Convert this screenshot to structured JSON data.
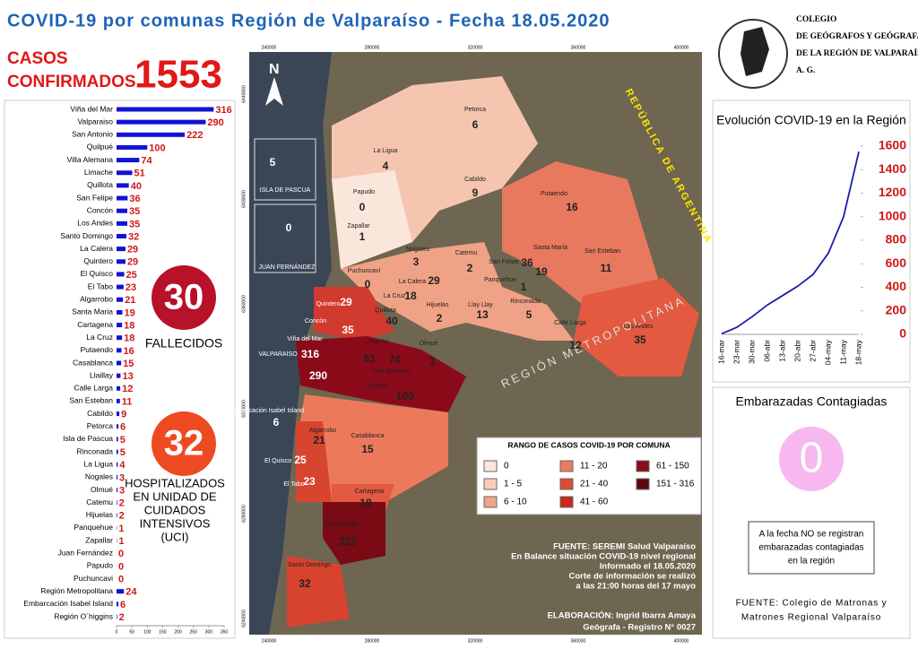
{
  "header": {
    "title": "COVID-19 por comunas Región de Valparaíso - Fecha 18.05.2020",
    "casos": "CASOS",
    "confirmados": "CONFIRMADOS",
    "total": "1553",
    "logo_lines": [
      "COLEGIO",
      "DE GEÓGRAFOS Y GEÓGRAFAS",
      "DE LA REGIÓN DE VALPARAÍSO",
      "A. G."
    ]
  },
  "stats": {
    "fallecidos_value": "30",
    "fallecidos": "FALLECIDOS",
    "uci_value": "32",
    "uci_lines": [
      "HOSPITALIZADOS",
      "EN UNIDAD DE",
      "CUIDADOS",
      "INTENSIVOS",
      "(UCI)"
    ]
  },
  "chart_data": [
    {
      "type": "hbar",
      "color": "#1212d4",
      "label_color": "#d01818",
      "categories": [
        "Viña del Mar",
        "Valparaiso",
        "San Antonio",
        "Quilpué",
        "Villa Alemana",
        "Limache",
        "Quillota",
        "San Felipe",
        "Concón",
        "Los Andes",
        "Santo Domingo",
        "La Calera",
        "Quintero",
        "El Quisco",
        "El Tabo",
        "Algarrobo",
        "Santa Maria",
        "Cartagena",
        "La Cruz",
        "Putaendo",
        "Casablanca",
        "Llaillay",
        "Calle Larga",
        "San Esteban",
        "Cabildo",
        "Petorca",
        "Isla de Pascua",
        "Rinconada",
        "La Ligua",
        "Nogales",
        "Olmué",
        "Catemu",
        "Hijuelas",
        "Panquehue",
        "Zapallar",
        "Juan Fernández",
        "Papudo",
        "Puchuncavi",
        "Región Metropolitana",
        "Embarcación Isabel Island",
        "Región O´higgins"
      ],
      "values": [
        316,
        290,
        222,
        100,
        74,
        51,
        40,
        36,
        35,
        35,
        32,
        29,
        29,
        25,
        23,
        21,
        19,
        18,
        18,
        16,
        15,
        13,
        12,
        11,
        9,
        6,
        5,
        5,
        4,
        3,
        3,
        2,
        2,
        1,
        1,
        0,
        0,
        0,
        24,
        6,
        2
      ],
      "xlim": [
        0,
        350
      ],
      "xticks": [
        0,
        50,
        100,
        150,
        200,
        250,
        300,
        350
      ]
    },
    {
      "type": "line",
      "title": "Evolución COVID-19 en la Región",
      "categories": [
        "16-mar",
        "23-mar",
        "30-mar",
        "06-abr",
        "13-abr",
        "20-abr",
        "27-abr",
        "04-may",
        "11-may",
        "18-may"
      ],
      "series": [
        {
          "name": "Casos",
          "color": "#1c1cb0",
          "values": [
            5,
            60,
            150,
            250,
            330,
            410,
            510,
            690,
            1000,
            1553
          ]
        }
      ],
      "ylim": [
        0,
        1600
      ],
      "yticks": [
        0,
        200,
        400,
        600,
        800,
        1000,
        1200,
        1400,
        1600
      ]
    }
  ],
  "map": {
    "communes": [
      "Petorca",
      "La Ligua",
      "Cabildo",
      "Putaendo",
      "Papudo",
      "Zapallar",
      "Nogales",
      "Catemu",
      "San Felipe",
      "Santa María",
      "San Esteban",
      "Puchuncaví",
      "La Calera",
      "La Cruz",
      "Panquehue",
      "Hijuelas",
      "Llay Llay",
      "Rinconada",
      "Quillota",
      "Quintero",
      "Concón",
      "Calle Larga",
      "Los Andes",
      "Viña del Mar",
      "Limache",
      "Villa Alemana",
      "Olmué",
      "VALPARAISO",
      "Quilpué",
      "Algarrobo",
      "Casablanca",
      "El Quisco",
      "El Tabo",
      "Cartagena",
      "San Antonio",
      "Santo Domingo",
      "Embarcación Isabel Island",
      "ISLA DE PASCUA",
      "JUAN FERNÁNDEZ"
    ],
    "north": "N",
    "metro": "REGIÓN METROPOLITANA",
    "argentina": "REPÚBLICA DE ARGENTINA",
    "xticks": [
      "240000",
      "280000",
      "320000",
      "360000",
      "400000"
    ],
    "yticks": [
      "6440000",
      "6400000",
      "6360000",
      "6320000",
      "6280000",
      "6240000"
    ],
    "legend_title": "RANGO DE CASOS COVID-19 POR COMUNA",
    "legend": [
      {
        "label": "0",
        "color": "#fbe6dc"
      },
      {
        "label": "1 - 5",
        "color": "#f8cdb8"
      },
      {
        "label": "6 - 10",
        "color": "#f1a488"
      },
      {
        "label": "11 - 20",
        "color": "#ea7c5e"
      },
      {
        "label": "21 - 40",
        "color": "#dc4b34"
      },
      {
        "label": "41 - 60",
        "color": "#c8281f"
      },
      {
        "label": "61 - 150",
        "color": "#8c0c1a"
      },
      {
        "label": "151 - 316",
        "color": "#5e0610"
      }
    ],
    "source": [
      "FUENTE: SEREMI Salud Valparaíso",
      "En Balance situación COVID-19 nivel regional",
      "Informado el 18.05.2020",
      "Corte de información se realizó",
      "a las 21:00 horas del 17  mayo"
    ],
    "credit": [
      "ELABORACIÓN: Ingrid Ibarra Amaya",
      "Geógrafa - Registro N° 0027"
    ]
  },
  "pregnant": {
    "title": "Embarazadas Contagiadas",
    "value": "0",
    "note": [
      "A la fecha NO se registran",
      "embarazadas contagiadas",
      "en la región"
    ],
    "source": [
      "FUENTE: Colegio de Matronas y",
      "Matrones Regional Valparaíso"
    ]
  }
}
